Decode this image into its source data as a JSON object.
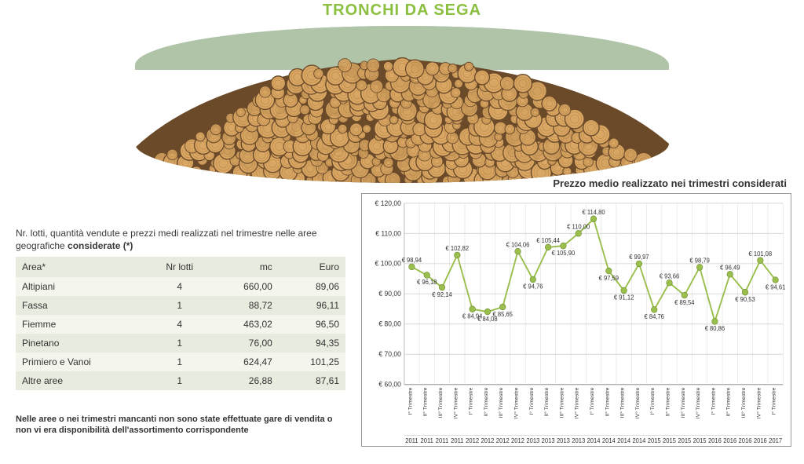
{
  "header": {
    "title": "TRONCHI DA SEGA",
    "title_color": "#8bbf3f"
  },
  "illustration": {
    "name": "log-pile-image",
    "log_face_color": "#d9a763",
    "log_ring_color": "#a77338",
    "bark_color": "#6b4a2a",
    "sky_color": "#b0c4a8"
  },
  "table": {
    "caption_pre": "Nr. lotti, quantità vendute e prezzi medi realizzati nel trimestre nelle aree geografiche ",
    "caption_bold": "considerate (*)",
    "columns": [
      "Area*",
      "Nr lotti",
      "mc",
      "Euro"
    ],
    "rows": [
      [
        "Altipiani",
        "4",
        "660,00",
        "89,06"
      ],
      [
        "Fassa",
        "1",
        "88,72",
        "96,11"
      ],
      [
        "Fiemme",
        "4",
        "463,02",
        "96,50"
      ],
      [
        "Pinetano",
        "1",
        "76,00",
        "94,35"
      ],
      [
        "Primiero e Vanoi",
        "1",
        "624,47",
        "101,25"
      ],
      [
        "Altre aree",
        "1",
        "26,88",
        "87,61"
      ]
    ],
    "header_bg": "#e8ecdf",
    "row_odd_bg": "#f4f6ee",
    "row_even_bg": "#e8ecdf"
  },
  "footnote": "Nelle aree o nei trimestri mancanti non sono state effettuate gare di vendita o non vi era disponibilità dell'assortimento corrispondente",
  "chart": {
    "type": "line",
    "title": "Prezzo medio realizzato nei trimestri considerati",
    "ylim": [
      60,
      120
    ],
    "ytick_step": 10,
    "ylabel_prefix": "€ ",
    "marker_size": 4,
    "line_color": "#9bbf4d",
    "marker_color": "#9bbf4d",
    "grid_color": "#d8d8d8",
    "point_label_prefix": "€ ",
    "background_color": "#ffffff",
    "border_color": "#999999",
    "title_fontsize": 13,
    "axis_fontsize": 9,
    "point_label_fontsize": 8,
    "line_width": 2,
    "x_labels": [
      {
        "q": "I° Trimestre",
        "y": "2011"
      },
      {
        "q": "II° Trimestre",
        "y": "2011"
      },
      {
        "q": "III° Trimestre",
        "y": "2011"
      },
      {
        "q": "IV° Trimestre",
        "y": "2011"
      },
      {
        "q": "I° Trimestre",
        "y": "2012"
      },
      {
        "q": "II° Trimestre",
        "y": "2012"
      },
      {
        "q": "III° Trimestre",
        "y": "2012"
      },
      {
        "q": "IV° Trimestre",
        "y": "2012"
      },
      {
        "q": "I° Trimestre",
        "y": "2013"
      },
      {
        "q": "II° Trimestre",
        "y": "2013"
      },
      {
        "q": "III° Trimestre",
        "y": "2013"
      },
      {
        "q": "IV° Trimestre",
        "y": "2013"
      },
      {
        "q": "I° Trimestre",
        "y": "2014"
      },
      {
        "q": "II° Trimestre",
        "y": "2014"
      },
      {
        "q": "III° Trimestre",
        "y": "2014"
      },
      {
        "q": "IV° Trimestre",
        "y": "2014"
      },
      {
        "q": "I° Trimestre",
        "y": "2015"
      },
      {
        "q": "II° Trimestre",
        "y": "2015"
      },
      {
        "q": "III° Trimestre",
        "y": "2015"
      },
      {
        "q": "IV° Trimestre",
        "y": "2015"
      },
      {
        "q": "I° Trimestre",
        "y": "2016"
      },
      {
        "q": "II° Trimestre",
        "y": "2016"
      },
      {
        "q": "III° Trimestre",
        "y": "2016"
      },
      {
        "q": "IV° Trimestre",
        "y": "2016"
      },
      {
        "q": "I° Trimestre",
        "y": "2017"
      }
    ],
    "values": [
      98.94,
      96.18,
      92.14,
      102.82,
      84.94,
      84.08,
      85.65,
      104.06,
      94.76,
      105.44,
      105.9,
      110.0,
      114.8,
      97.59,
      91.12,
      99.97,
      84.76,
      93.66,
      89.54,
      98.79,
      80.86,
      96.49,
      90.53,
      101.08,
      94.61
    ],
    "label_positions": [
      "a",
      "b",
      "b",
      "a",
      "b",
      "b",
      "b",
      "a",
      "b",
      "a",
      "b",
      "a",
      "a",
      "b",
      "b",
      "a",
      "b",
      "a",
      "b",
      "a",
      "b",
      "a",
      "b",
      "a",
      "b"
    ]
  }
}
